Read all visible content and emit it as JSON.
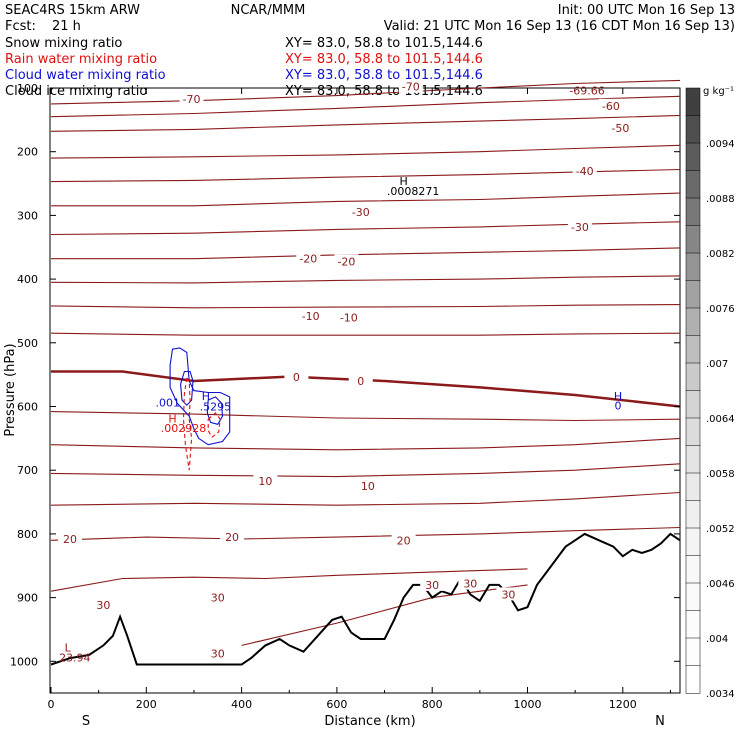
{
  "header": {
    "model": "SEAC4RS 15km ARW",
    "org": "NCAR/MMM",
    "init": "Init: 00 UTC Mon 16 Sep 13",
    "fcst_label": "Fcst:",
    "fcst_value": "21 h",
    "valid": "Valid: 21 UTC Mon 16 Sep 13 (16 CDT Mon 16 Sep 13)"
  },
  "fields": [
    {
      "name": "Snow mixing ratio",
      "xy": "XY=  83.0, 58.8 to 101.5,144.6",
      "color": "#000000"
    },
    {
      "name": "Rain water mixing ratio",
      "xy": "XY=  83.0, 58.8 to 101.5,144.6",
      "color": "#e01010"
    },
    {
      "name": "Cloud water mixing ratio",
      "xy": "XY=  83.0, 58.8 to 101.5,144.6",
      "color": "#1010d0"
    },
    {
      "name": "Cloud ice mixing ratio",
      "xy": "XY=  83.0, 58.8 to 101.5,144.6",
      "color": "#000000"
    }
  ],
  "chart_data": {
    "type": "cross-section contour",
    "xlabel": "Distance (km)",
    "ylabel": "Pressure (hPa)",
    "x_ticks": [
      0,
      200,
      400,
      600,
      800,
      1000,
      1200
    ],
    "y_ticks": [
      100,
      200,
      300,
      400,
      500,
      600,
      700,
      800,
      900,
      1000
    ],
    "xlim": [
      0,
      1320
    ],
    "ylim": [
      1050,
      100
    ],
    "endpoints": {
      "left": "S",
      "right": "N"
    },
    "temperature_contour_color": "#8b1a1a",
    "isotherms": [
      {
        "value": -70,
        "points": [
          [
            0,
            125
          ],
          [
            300,
            120
          ],
          [
            600,
            112
          ],
          [
            900,
            100
          ],
          [
            1100,
            93
          ],
          [
            1320,
            88
          ]
        ]
      },
      {
        "value": -60,
        "points": [
          [
            0,
            145
          ],
          [
            300,
            140
          ],
          [
            600,
            132
          ],
          [
            900,
            123
          ],
          [
            1100,
            118
          ],
          [
            1320,
            113
          ]
        ]
      },
      {
        "value": -50,
        "points": [
          [
            0,
            168
          ],
          [
            300,
            165
          ],
          [
            600,
            158
          ],
          [
            900,
            152
          ],
          [
            1100,
            148
          ],
          [
            1320,
            143
          ]
        ]
      },
      {
        "value": -40,
        "points": [
          [
            0,
            210
          ],
          [
            300,
            208
          ],
          [
            600,
            205
          ],
          [
            900,
            200
          ],
          [
            1100,
            195
          ],
          [
            1320,
            190
          ]
        ]
      },
      {
        "value": -40,
        "points": [
          [
            0,
            247
          ],
          [
            300,
            245
          ],
          [
            600,
            240
          ],
          [
            900,
            236
          ],
          [
            1100,
            232
          ],
          [
            1320,
            228
          ]
        ]
      },
      {
        "value": -30,
        "points": [
          [
            0,
            285
          ],
          [
            300,
            285
          ],
          [
            600,
            278
          ],
          [
            900,
            275
          ],
          [
            1100,
            270
          ],
          [
            1320,
            265
          ]
        ]
      },
      {
        "value": -30,
        "points": [
          [
            0,
            330
          ],
          [
            300,
            328
          ],
          [
            600,
            322
          ],
          [
            900,
            318
          ],
          [
            1100,
            314
          ],
          [
            1320,
            310
          ]
        ]
      },
      {
        "value": -20,
        "points": [
          [
            0,
            368
          ],
          [
            300,
            368
          ],
          [
            600,
            362
          ],
          [
            900,
            358
          ],
          [
            1100,
            355
          ],
          [
            1320,
            351
          ]
        ]
      },
      {
        "value": -20,
        "points": [
          [
            0,
            405
          ],
          [
            300,
            406
          ],
          [
            600,
            402
          ],
          [
            900,
            400
          ],
          [
            1100,
            397
          ],
          [
            1320,
            395
          ]
        ]
      },
      {
        "value": -10,
        "points": [
          [
            0,
            442
          ],
          [
            300,
            445
          ],
          [
            600,
            444
          ],
          [
            900,
            443
          ],
          [
            1100,
            441
          ],
          [
            1320,
            440
          ]
        ]
      },
      {
        "value": -10,
        "points": [
          [
            0,
            485
          ],
          [
            300,
            488
          ],
          [
            600,
            488
          ],
          [
            900,
            488
          ],
          [
            1100,
            486
          ],
          [
            1320,
            485
          ]
        ]
      },
      {
        "value": 0,
        "points": [
          [
            0,
            545
          ],
          [
            150,
            545
          ],
          [
            300,
            560
          ],
          [
            500,
            553
          ],
          [
            700,
            560
          ],
          [
            900,
            570
          ],
          [
            1100,
            582
          ],
          [
            1320,
            600
          ]
        ]
      },
      {
        "value": 10,
        "points": [
          [
            0,
            608
          ],
          [
            300,
            612
          ],
          [
            600,
            618
          ],
          [
            900,
            620
          ],
          [
            1100,
            622
          ],
          [
            1320,
            620
          ]
        ]
      },
      {
        "value": 10,
        "points": [
          [
            0,
            660
          ],
          [
            300,
            665
          ],
          [
            600,
            668
          ],
          [
            900,
            665
          ],
          [
            1100,
            660
          ],
          [
            1320,
            650
          ]
        ]
      },
      {
        "value": 10,
        "points": [
          [
            0,
            705
          ],
          [
            300,
            708
          ],
          [
            600,
            710
          ],
          [
            900,
            705
          ],
          [
            1100,
            700
          ],
          [
            1320,
            690
          ]
        ]
      },
      {
        "value": 20,
        "points": [
          [
            0,
            755
          ],
          [
            300,
            752
          ],
          [
            600,
            755
          ],
          [
            900,
            752
          ],
          [
            1100,
            745
          ],
          [
            1320,
            735
          ]
        ]
      },
      {
        "value": 20,
        "points": [
          [
            0,
            810
          ],
          [
            200,
            805
          ],
          [
            400,
            808
          ],
          [
            600,
            805
          ],
          [
            900,
            800
          ],
          [
            1100,
            795
          ],
          [
            1320,
            790
          ]
        ]
      },
      {
        "value": 30,
        "points": [
          [
            0,
            890
          ],
          [
            150,
            870
          ],
          [
            300,
            868
          ],
          [
            450,
            870
          ],
          [
            600,
            865
          ],
          [
            800,
            860
          ],
          [
            1000,
            855
          ]
        ]
      },
      {
        "value": 30,
        "points": [
          [
            400,
            975
          ],
          [
            600,
            940
          ],
          [
            800,
            900
          ],
          [
            1000,
            880
          ]
        ]
      }
    ],
    "isotherm_labels": [
      {
        "text": "-70",
        "x": 295,
        "y": 117
      },
      {
        "text": "-70",
        "x": 755,
        "y": 98
      },
      {
        "text": "-60",
        "x": 1175,
        "y": 128
      },
      {
        "text": "-50",
        "x": 1195,
        "y": 163
      },
      {
        "text": "-40",
        "x": 1120,
        "y": 230
      },
      {
        "text": "-30",
        "x": 650,
        "y": 295
      },
      {
        "text": "-30",
        "x": 1110,
        "y": 318
      },
      {
        "text": "-20",
        "x": 540,
        "y": 368
      },
      {
        "text": "-20",
        "x": 620,
        "y": 372
      },
      {
        "text": "-10",
        "x": 545,
        "y": 458
      },
      {
        "text": "-10",
        "x": 625,
        "y": 460
      },
      {
        "text": "0",
        "x": 515,
        "y": 554
      },
      {
        "text": "0",
        "x": 650,
        "y": 560
      },
      {
        "text": "10",
        "x": 450,
        "y": 717
      },
      {
        "text": "10",
        "x": 665,
        "y": 725
      },
      {
        "text": "20",
        "x": 40,
        "y": 808
      },
      {
        "text": "20",
        "x": 380,
        "y": 805
      },
      {
        "text": "20",
        "x": 740,
        "y": 810
      },
      {
        "text": "30",
        "x": 110,
        "y": 912
      },
      {
        "text": "30",
        "x": 350,
        "y": 900
      },
      {
        "text": "30",
        "x": 800,
        "y": 880
      },
      {
        "text": "30",
        "x": 880,
        "y": 878
      },
      {
        "text": "30",
        "x": 960,
        "y": 895
      },
      {
        "text": "30",
        "x": 350,
        "y": 988
      }
    ],
    "extrema_labels": [
      {
        "text": "H",
        "x": 740,
        "y": 252,
        "color": "#000000"
      },
      {
        "text": ".0008271",
        "x": 760,
        "y": 268,
        "color": "#000000"
      },
      {
        "text": "-69.66",
        "x": 1125,
        "y": 110,
        "color": "#8b1a1a"
      },
      {
        "text": ".001",
        "x": 245,
        "y": 600,
        "color": "#1010d0"
      },
      {
        "text": "H",
        "x": 325,
        "y": 590,
        "color": "#1010d0"
      },
      {
        "text": ".5295",
        "x": 345,
        "y": 606,
        "color": "#1010d0"
      },
      {
        "text": "H",
        "x": 255,
        "y": 625,
        "color": "#e01010"
      },
      {
        "text": ".002928",
        "x": 278,
        "y": 640,
        "color": "#e01010"
      },
      {
        "text": "H",
        "x": 1190,
        "y": 590,
        "color": "#1010d0"
      },
      {
        "text": "0",
        "x": 1190,
        "y": 605,
        "color": "#1010d0"
      },
      {
        "text": "L",
        "x": 35,
        "y": 985,
        "color": "#8b1a1a"
      },
      {
        "text": "23.94",
        "x": 50,
        "y": 1000,
        "color": "#8b1a1a"
      }
    ],
    "terrain": {
      "color": "#000000",
      "points": [
        [
          0,
          1005
        ],
        [
          40,
          995
        ],
        [
          80,
          990
        ],
        [
          110,
          975
        ],
        [
          130,
          960
        ],
        [
          145,
          930
        ],
        [
          160,
          960
        ],
        [
          180,
          1005
        ],
        [
          200,
          1005
        ],
        [
          300,
          1005
        ],
        [
          400,
          1005
        ],
        [
          420,
          995
        ],
        [
          450,
          975
        ],
        [
          480,
          965
        ],
        [
          500,
          975
        ],
        [
          530,
          985
        ],
        [
          560,
          960
        ],
        [
          590,
          935
        ],
        [
          610,
          930
        ],
        [
          630,
          955
        ],
        [
          650,
          965
        ],
        [
          680,
          965
        ],
        [
          700,
          965
        ],
        [
          720,
          935
        ],
        [
          740,
          900
        ],
        [
          760,
          880
        ],
        [
          780,
          880
        ],
        [
          800,
          900
        ],
        [
          820,
          890
        ],
        [
          840,
          895
        ],
        [
          860,
          870
        ],
        [
          880,
          895
        ],
        [
          900,
          905
        ],
        [
          920,
          880
        ],
        [
          940,
          880
        ],
        [
          960,
          895
        ],
        [
          980,
          920
        ],
        [
          1000,
          915
        ],
        [
          1020,
          880
        ],
        [
          1040,
          860
        ],
        [
          1060,
          840
        ],
        [
          1080,
          820
        ],
        [
          1100,
          810
        ],
        [
          1120,
          800
        ],
        [
          1150,
          810
        ],
        [
          1180,
          820
        ],
        [
          1200,
          835
        ],
        [
          1220,
          825
        ],
        [
          1240,
          830
        ],
        [
          1260,
          825
        ],
        [
          1280,
          815
        ],
        [
          1300,
          800
        ],
        [
          1320,
          810
        ]
      ]
    },
    "cloud_water": {
      "color": "#1010d0",
      "contours": [
        [
          [
            255,
            510
          ],
          [
            270,
            508
          ],
          [
            285,
            515
          ],
          [
            290,
            560
          ],
          [
            300,
            575
          ],
          [
            330,
            578
          ],
          [
            355,
            578
          ],
          [
            375,
            585
          ],
          [
            375,
            640
          ],
          [
            360,
            655
          ],
          [
            330,
            660
          ],
          [
            310,
            650
          ],
          [
            300,
            635
          ],
          [
            290,
            615
          ],
          [
            265,
            595
          ],
          [
            250,
            570
          ],
          [
            250,
            535
          ],
          [
            255,
            510
          ]
        ],
        [
          [
            280,
            545
          ],
          [
            292,
            545
          ],
          [
            298,
            560
          ],
          [
            295,
            590
          ],
          [
            285,
            598
          ],
          [
            275,
            590
          ],
          [
            272,
            565
          ],
          [
            280,
            545
          ]
        ],
        [
          [
            330,
            590
          ],
          [
            345,
            585
          ],
          [
            358,
            595
          ],
          [
            360,
            615
          ],
          [
            350,
            628
          ],
          [
            335,
            625
          ],
          [
            328,
            610
          ],
          [
            330,
            590
          ]
        ]
      ]
    },
    "rain_water": {
      "color": "#e01010",
      "contours": [
        [
          [
            285,
            555
          ],
          [
            290,
            560
          ],
          [
            292,
            590
          ],
          [
            290,
            620
          ],
          [
            295,
            650
          ],
          [
            290,
            700
          ],
          [
            282,
            660
          ],
          [
            278,
            620
          ],
          [
            280,
            580
          ],
          [
            285,
            555
          ]
        ],
        [
          [
            330,
            620
          ],
          [
            345,
            610
          ],
          [
            355,
            620
          ],
          [
            352,
            640
          ],
          [
            338,
            648
          ],
          [
            330,
            638
          ],
          [
            330,
            620
          ]
        ]
      ]
    },
    "colorbar": {
      "unit": "g kg⁻¹",
      "labels": [
        ".0094",
        ".0088",
        ".0082",
        ".0076",
        ".007",
        ".0064",
        ".0058",
        ".0052",
        ".0046",
        ".004",
        ".0034"
      ],
      "shades": [
        "#404040",
        "#4e4e4e",
        "#5c5c5c",
        "#6a6a6a",
        "#787878",
        "#868686",
        "#949494",
        "#a2a2a2",
        "#b0b0b0",
        "#bebebe",
        "#cacaca",
        "#d4d4d4",
        "#dcdcdc",
        "#e4e4e4",
        "#eaeaea",
        "#f0f0f0",
        "#f4f4f4",
        "#f8f8f8",
        "#fafafa",
        "#fcfcfc",
        "#fdfdfd",
        "#fefefe"
      ]
    }
  }
}
